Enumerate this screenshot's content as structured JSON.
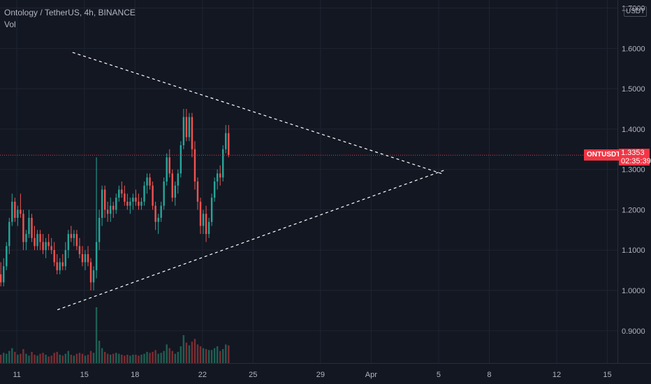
{
  "header": {
    "symbol_line": "Ontology / TetherUS, 4h, BINANCE",
    "volume_label": "Vol"
  },
  "price_axis": {
    "unit": "USDT",
    "symbol_tag": "ONTUSDT",
    "last_price": "1.3353",
    "countdown": "02:35:39"
  },
  "colors": {
    "background": "#131722",
    "up": "#26a69a",
    "down": "#ef5350",
    "price_line": "#f23645",
    "trendline": "#ffffff",
    "grid": "#1f2433"
  },
  "chart_data": {
    "type": "candlestick",
    "title": "Ontology / TetherUS, 4h, BINANCE",
    "ylim": [
      0.82,
      1.72
    ],
    "y_ticks": [
      "1.7000",
      "1.6000",
      "1.5000",
      "1.4000",
      "1.3000",
      "1.2000",
      "1.1000",
      "1.0000",
      "0.9000"
    ],
    "x_ticks": [
      "11",
      "15",
      "18",
      "22",
      "25",
      "29",
      "Apr",
      "5",
      "8",
      "12",
      "15"
    ],
    "x_ticks_day_index": [
      11,
      15,
      18,
      22,
      25,
      29,
      32,
      36,
      39,
      43,
      46
    ],
    "x_range_days": [
      10.0,
      46.6
    ],
    "last_price": 1.3353,
    "trendlines": [
      {
        "from": {
          "day": 14.3,
          "price": 1.59
        },
        "to": {
          "day": 36.3,
          "price": 1.288
        }
      },
      {
        "from": {
          "day": 13.4,
          "price": 0.952
        },
        "to": {
          "day": 36.4,
          "price": 1.299
        }
      }
    ],
    "candles": [
      {
        "o": 1.04,
        "h": 1.07,
        "l": 1.01,
        "c": 1.02
      },
      {
        "o": 1.02,
        "h": 1.08,
        "l": 1.01,
        "c": 1.06
      },
      {
        "o": 1.06,
        "h": 1.12,
        "l": 1.05,
        "c": 1.11
      },
      {
        "o": 1.11,
        "h": 1.18,
        "l": 1.09,
        "c": 1.17
      },
      {
        "o": 1.17,
        "h": 1.24,
        "l": 1.16,
        "c": 1.22
      },
      {
        "o": 1.22,
        "h": 1.23,
        "l": 1.17,
        "c": 1.18
      },
      {
        "o": 1.18,
        "h": 1.21,
        "l": 1.16,
        "c": 1.2
      },
      {
        "o": 1.2,
        "h": 1.24,
        "l": 1.18,
        "c": 1.19
      },
      {
        "o": 1.19,
        "h": 1.2,
        "l": 1.1,
        "c": 1.12
      },
      {
        "o": 1.12,
        "h": 1.15,
        "l": 1.1,
        "c": 1.14
      },
      {
        "o": 1.14,
        "h": 1.2,
        "l": 1.13,
        "c": 1.18
      },
      {
        "o": 1.18,
        "h": 1.19,
        "l": 1.12,
        "c": 1.13
      },
      {
        "o": 1.13,
        "h": 1.16,
        "l": 1.1,
        "c": 1.11
      },
      {
        "o": 1.11,
        "h": 1.15,
        "l": 1.1,
        "c": 1.14
      },
      {
        "o": 1.14,
        "h": 1.15,
        "l": 1.1,
        "c": 1.12
      },
      {
        "o": 1.12,
        "h": 1.14,
        "l": 1.09,
        "c": 1.1
      },
      {
        "o": 1.1,
        "h": 1.13,
        "l": 1.08,
        "c": 1.12
      },
      {
        "o": 1.12,
        "h": 1.14,
        "l": 1.1,
        "c": 1.11
      },
      {
        "o": 1.11,
        "h": 1.13,
        "l": 1.09,
        "c": 1.1
      },
      {
        "o": 1.1,
        "h": 1.12,
        "l": 1.06,
        "c": 1.07
      },
      {
        "o": 1.07,
        "h": 1.09,
        "l": 1.04,
        "c": 1.05
      },
      {
        "o": 1.05,
        "h": 1.08,
        "l": 1.04,
        "c": 1.07
      },
      {
        "o": 1.07,
        "h": 1.09,
        "l": 1.05,
        "c": 1.06
      },
      {
        "o": 1.06,
        "h": 1.12,
        "l": 1.05,
        "c": 1.1
      },
      {
        "o": 1.1,
        "h": 1.15,
        "l": 1.08,
        "c": 1.14
      },
      {
        "o": 1.14,
        "h": 1.16,
        "l": 1.12,
        "c": 1.13
      },
      {
        "o": 1.13,
        "h": 1.15,
        "l": 1.11,
        "c": 1.14
      },
      {
        "o": 1.14,
        "h": 1.15,
        "l": 1.1,
        "c": 1.11
      },
      {
        "o": 1.11,
        "h": 1.13,
        "l": 1.08,
        "c": 1.09
      },
      {
        "o": 1.09,
        "h": 1.11,
        "l": 1.06,
        "c": 1.07
      },
      {
        "o": 1.07,
        "h": 1.1,
        "l": 1.05,
        "c": 1.09
      },
      {
        "o": 1.09,
        "h": 1.11,
        "l": 1.06,
        "c": 1.07
      },
      {
        "o": 1.07,
        "h": 1.08,
        "l": 1.0,
        "c": 1.02
      },
      {
        "o": 1.02,
        "h": 1.06,
        "l": 1.0,
        "c": 1.05
      },
      {
        "o": 1.05,
        "h": 1.33,
        "l": 1.03,
        "c": 1.12
      },
      {
        "o": 1.12,
        "h": 1.2,
        "l": 1.1,
        "c": 1.18
      },
      {
        "o": 1.18,
        "h": 1.26,
        "l": 1.16,
        "c": 1.25
      },
      {
        "o": 1.25,
        "h": 1.26,
        "l": 1.18,
        "c": 1.2
      },
      {
        "o": 1.2,
        "h": 1.22,
        "l": 1.17,
        "c": 1.19
      },
      {
        "o": 1.19,
        "h": 1.23,
        "l": 1.17,
        "c": 1.21
      },
      {
        "o": 1.21,
        "h": 1.22,
        "l": 1.18,
        "c": 1.2
      },
      {
        "o": 1.2,
        "h": 1.24,
        "l": 1.19,
        "c": 1.23
      },
      {
        "o": 1.23,
        "h": 1.26,
        "l": 1.22,
        "c": 1.25
      },
      {
        "o": 1.25,
        "h": 1.27,
        "l": 1.23,
        "c": 1.24
      },
      {
        "o": 1.24,
        "h": 1.26,
        "l": 1.21,
        "c": 1.22
      },
      {
        "o": 1.22,
        "h": 1.24,
        "l": 1.2,
        "c": 1.21
      },
      {
        "o": 1.21,
        "h": 1.23,
        "l": 1.19,
        "c": 1.22
      },
      {
        "o": 1.22,
        "h": 1.24,
        "l": 1.2,
        "c": 1.23
      },
      {
        "o": 1.23,
        "h": 1.25,
        "l": 1.21,
        "c": 1.22
      },
      {
        "o": 1.22,
        "h": 1.24,
        "l": 1.2,
        "c": 1.21
      },
      {
        "o": 1.21,
        "h": 1.23,
        "l": 1.2,
        "c": 1.22
      },
      {
        "o": 1.22,
        "h": 1.27,
        "l": 1.21,
        "c": 1.26
      },
      {
        "o": 1.26,
        "h": 1.29,
        "l": 1.24,
        "c": 1.28
      },
      {
        "o": 1.28,
        "h": 1.29,
        "l": 1.25,
        "c": 1.26
      },
      {
        "o": 1.26,
        "h": 1.27,
        "l": 1.2,
        "c": 1.21
      },
      {
        "o": 1.21,
        "h": 1.22,
        "l": 1.15,
        "c": 1.17
      },
      {
        "o": 1.17,
        "h": 1.19,
        "l": 1.14,
        "c": 1.18
      },
      {
        "o": 1.18,
        "h": 1.22,
        "l": 1.17,
        "c": 1.21
      },
      {
        "o": 1.21,
        "h": 1.28,
        "l": 1.2,
        "c": 1.27
      },
      {
        "o": 1.27,
        "h": 1.34,
        "l": 1.26,
        "c": 1.33
      },
      {
        "o": 1.33,
        "h": 1.35,
        "l": 1.28,
        "c": 1.29
      },
      {
        "o": 1.29,
        "h": 1.3,
        "l": 1.22,
        "c": 1.23
      },
      {
        "o": 1.23,
        "h": 1.27,
        "l": 1.21,
        "c": 1.26
      },
      {
        "o": 1.26,
        "h": 1.3,
        "l": 1.24,
        "c": 1.29
      },
      {
        "o": 1.29,
        "h": 1.37,
        "l": 1.28,
        "c": 1.36
      },
      {
        "o": 1.36,
        "h": 1.45,
        "l": 1.35,
        "c": 1.43
      },
      {
        "o": 1.43,
        "h": 1.45,
        "l": 1.37,
        "c": 1.38
      },
      {
        "o": 1.38,
        "h": 1.44,
        "l": 1.37,
        "c": 1.43
      },
      {
        "o": 1.43,
        "h": 1.44,
        "l": 1.33,
        "c": 1.35
      },
      {
        "o": 1.35,
        "h": 1.37,
        "l": 1.25,
        "c": 1.27
      },
      {
        "o": 1.27,
        "h": 1.28,
        "l": 1.2,
        "c": 1.22
      },
      {
        "o": 1.22,
        "h": 1.23,
        "l": 1.14,
        "c": 1.16
      },
      {
        "o": 1.16,
        "h": 1.2,
        "l": 1.14,
        "c": 1.19
      },
      {
        "o": 1.19,
        "h": 1.21,
        "l": 1.12,
        "c": 1.14
      },
      {
        "o": 1.14,
        "h": 1.18,
        "l": 1.13,
        "c": 1.17
      },
      {
        "o": 1.17,
        "h": 1.24,
        "l": 1.16,
        "c": 1.23
      },
      {
        "o": 1.23,
        "h": 1.28,
        "l": 1.22,
        "c": 1.27
      },
      {
        "o": 1.27,
        "h": 1.3,
        "l": 1.25,
        "c": 1.29
      },
      {
        "o": 1.29,
        "h": 1.31,
        "l": 1.26,
        "c": 1.28
      },
      {
        "o": 1.28,
        "h": 1.36,
        "l": 1.27,
        "c": 1.35
      },
      {
        "o": 1.35,
        "h": 1.41,
        "l": 1.34,
        "c": 1.39
      },
      {
        "o": 1.39,
        "h": 1.41,
        "l": 1.33,
        "c": 1.3353
      }
    ],
    "volumes": [
      0.9,
      1.1,
      1.0,
      1.3,
      1.6,
      1.2,
      0.9,
      1.0,
      1.5,
      1.0,
      0.8,
      1.2,
      0.9,
      0.8,
      1.0,
      1.1,
      0.9,
      0.7,
      0.8,
      1.1,
      1.2,
      0.9,
      0.8,
      1.0,
      1.3,
      0.9,
      0.8,
      1.0,
      1.1,
      1.0,
      0.8,
      0.9,
      1.3,
      1.1,
      6.0,
      2.4,
      1.6,
      1.2,
      1.0,
      0.9,
      1.0,
      1.1,
      1.0,
      0.9,
      0.8,
      0.9,
      0.8,
      0.9,
      0.9,
      0.8,
      0.9,
      1.0,
      1.2,
      1.1,
      1.2,
      1.4,
      1.0,
      1.1,
      1.3,
      2.0,
      1.6,
      1.3,
      1.0,
      1.2,
      1.8,
      3.0,
      2.2,
      1.9,
      2.3,
      2.6,
      2.0,
      1.8,
      1.6,
      1.5,
      1.4,
      1.4,
      1.6,
      1.8,
      1.3,
      1.5,
      2.0,
      1.9,
      1.1
    ]
  }
}
